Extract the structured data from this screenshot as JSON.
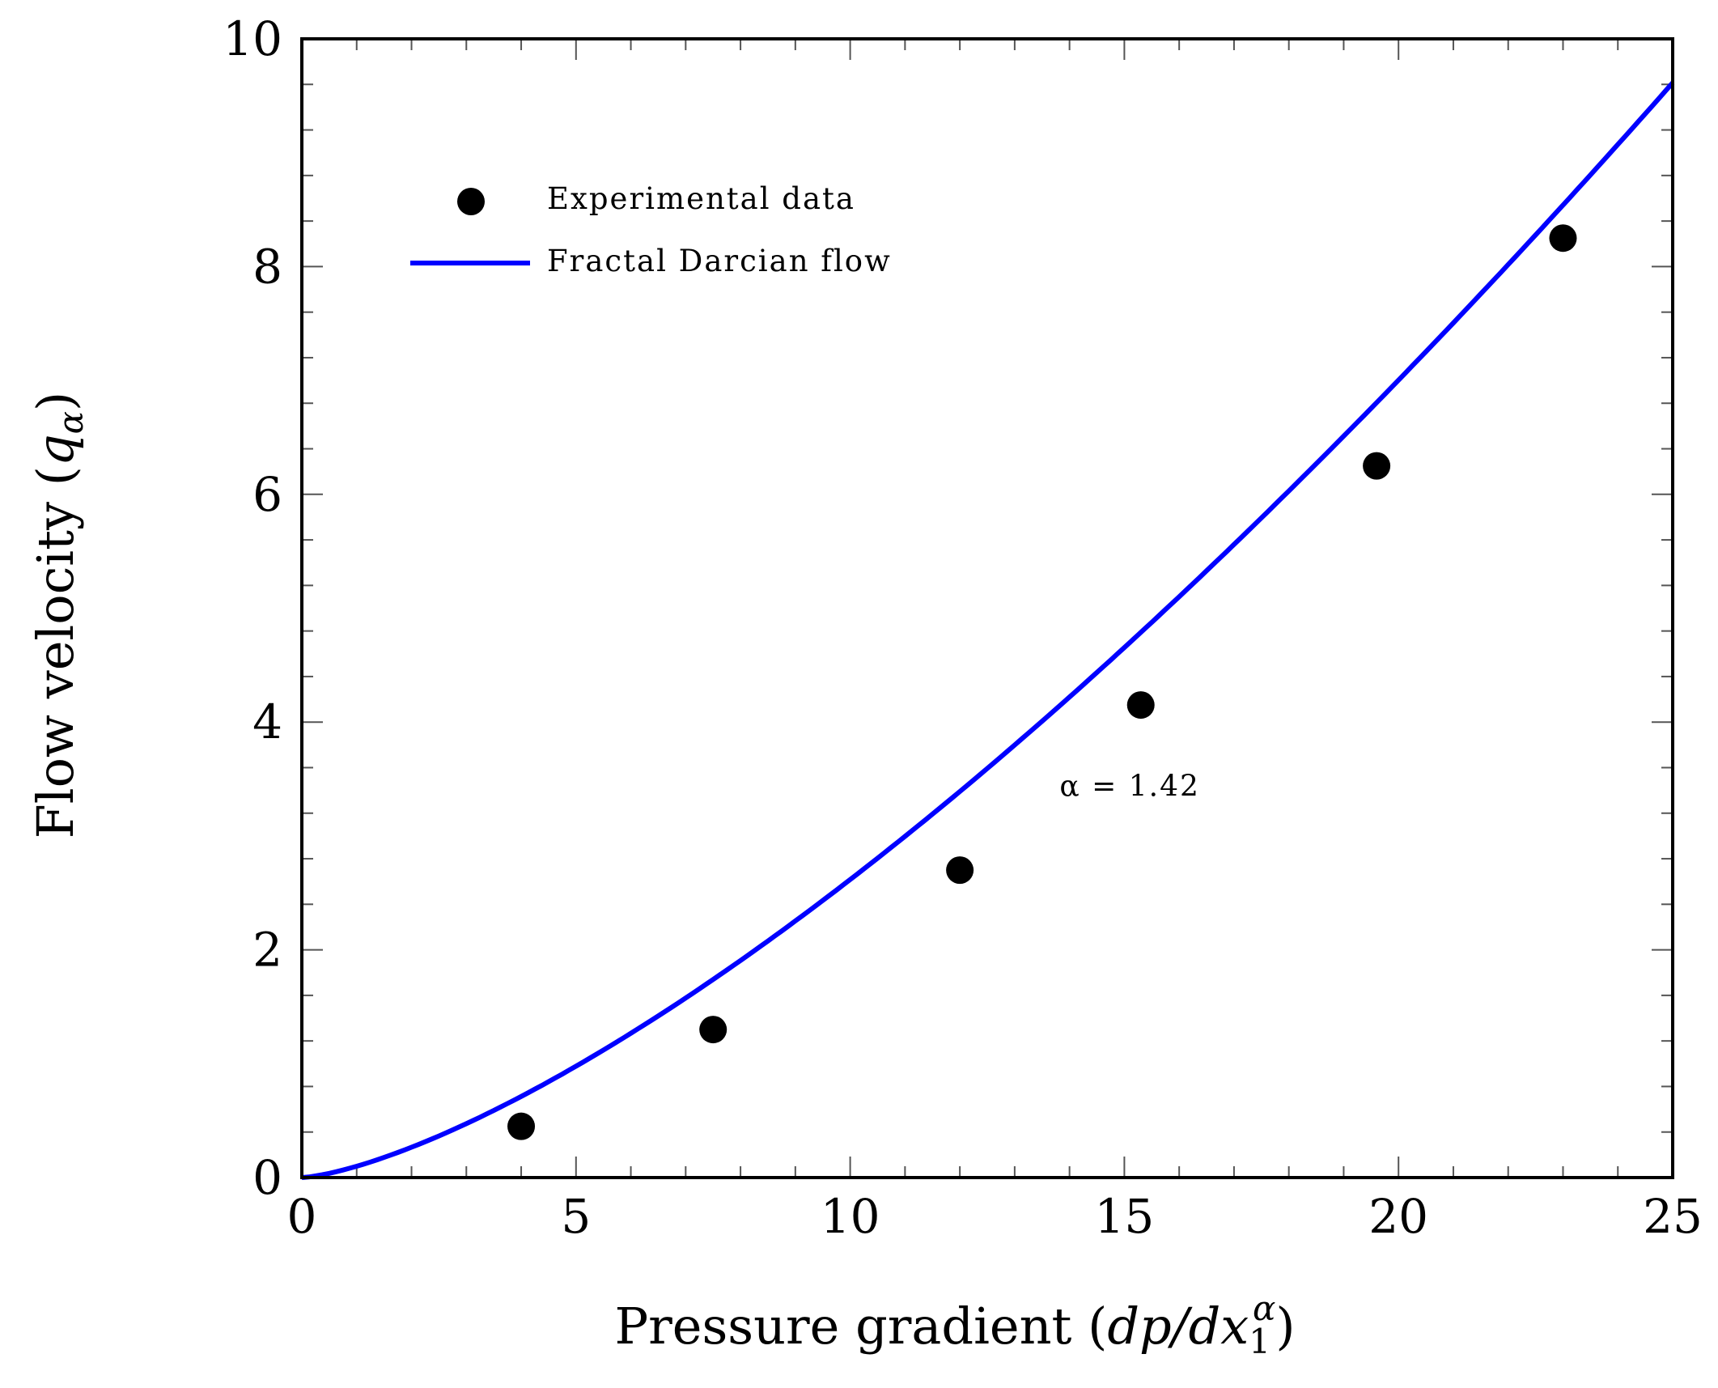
{
  "chart_data": {
    "type": "scatter",
    "xlabel": "Pressure gradient (dp/dx₁^α)",
    "xlabel_parts": {
      "main": "Pressure gradient (",
      "var": "dp/dx",
      "sub": "1",
      "sup": "α",
      "close": ")"
    },
    "ylabel": "Flow velocity (qα)",
    "ylabel_parts": {
      "main": "Flow velocity (",
      "var": "q",
      "sub": "α",
      "close": ")"
    },
    "xlim": [
      0,
      25
    ],
    "ylim": [
      0,
      10
    ],
    "xticks": [
      0,
      5,
      10,
      15,
      20,
      25
    ],
    "yticks": [
      0,
      2,
      4,
      6,
      8,
      10
    ],
    "x_minor_step": 1,
    "y_minor_step": 0.4,
    "grid": false,
    "legend_position": "top-left",
    "series": [
      {
        "name": "Experimental data",
        "kind": "scatter",
        "color": "#000000",
        "x": [
          4,
          7.5,
          12,
          15.3,
          19.6,
          23
        ],
        "y": [
          0.45,
          1.3,
          2.7,
          4.15,
          6.25,
          8.25
        ]
      },
      {
        "name": "Fractal Darcian flow",
        "kind": "line",
        "color": "#0000ff",
        "model": "q = k * x^alpha",
        "alpha": 1.42,
        "k": 0.0995,
        "x_range": [
          0,
          25
        ]
      }
    ],
    "annotations": [
      {
        "text": "α = 1.42",
        "x": 15.1,
        "y": 3.35
      }
    ]
  }
}
